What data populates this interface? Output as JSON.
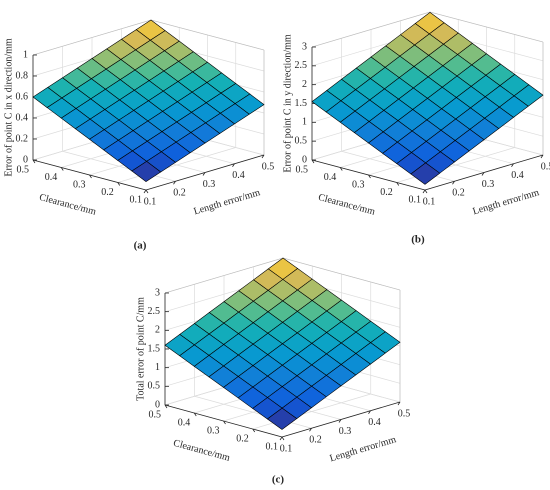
{
  "chart_data": [
    {
      "type": "surface",
      "caption": "(a)",
      "x_label": "Length error/mm",
      "y_label": "Clearance/mm",
      "z_label": "Error of point C in x direction/mm",
      "x": [
        0.1,
        0.15,
        0.2,
        0.25,
        0.3,
        0.35,
        0.4,
        0.45,
        0.5
      ],
      "y": [
        0.1,
        0.15,
        0.2,
        0.25,
        0.3,
        0.35,
        0.4,
        0.45,
        0.5
      ],
      "z": [
        [
          0.08,
          0.13,
          0.18,
          0.23,
          0.28,
          0.33,
          0.38,
          0.43,
          0.48
        ],
        [
          0.145,
          0.195,
          0.245,
          0.295,
          0.345,
          0.395,
          0.445,
          0.495,
          0.545
        ],
        [
          0.21,
          0.26,
          0.31,
          0.36,
          0.41,
          0.46,
          0.51,
          0.56,
          0.61
        ],
        [
          0.275,
          0.325,
          0.375,
          0.425,
          0.475,
          0.525,
          0.575,
          0.625,
          0.675
        ],
        [
          0.34,
          0.39,
          0.44,
          0.49,
          0.54,
          0.59,
          0.64,
          0.69,
          0.74
        ],
        [
          0.405,
          0.455,
          0.505,
          0.555,
          0.605,
          0.655,
          0.705,
          0.755,
          0.805
        ],
        [
          0.47,
          0.52,
          0.57,
          0.62,
          0.67,
          0.72,
          0.77,
          0.82,
          0.87
        ],
        [
          0.535,
          0.585,
          0.635,
          0.685,
          0.735,
          0.785,
          0.835,
          0.885,
          0.935
        ],
        [
          0.6,
          0.65,
          0.7,
          0.75,
          0.8,
          0.85,
          0.9,
          0.95,
          1.0
        ]
      ],
      "xlim": [
        0.1,
        0.5
      ],
      "ylim": [
        0.1,
        0.5
      ],
      "zlim": [
        0,
        1
      ],
      "xticks": [
        0.1,
        0.2,
        0.3,
        0.4,
        0.5
      ],
      "yticks": [
        0.1,
        0.2,
        0.3,
        0.4,
        0.5
      ],
      "zticks": [
        0,
        0.2,
        0.4,
        0.6,
        0.8,
        1
      ],
      "grid": true
    },
    {
      "type": "surface",
      "caption": "(b)",
      "x_label": "Length error/mm",
      "y_label": "Clearance/mm",
      "z_label": "Error of point C in y direction/mm",
      "x": [
        0.1,
        0.15,
        0.2,
        0.25,
        0.3,
        0.35,
        0.4,
        0.45,
        0.5
      ],
      "y": [
        0.1,
        0.15,
        0.2,
        0.25,
        0.3,
        0.35,
        0.4,
        0.45,
        0.5
      ],
      "z": [
        [
          0.15,
          0.33,
          0.51,
          0.69,
          0.87,
          1.05,
          1.23,
          1.41,
          1.59
        ],
        [
          0.325,
          0.505,
          0.685,
          0.865,
          1.045,
          1.225,
          1.405,
          1.585,
          1.765
        ],
        [
          0.5,
          0.68,
          0.86,
          1.04,
          1.22,
          1.4,
          1.58,
          1.76,
          1.94
        ],
        [
          0.675,
          0.855,
          1.035,
          1.215,
          1.395,
          1.575,
          1.755,
          1.935,
          2.115
        ],
        [
          0.85,
          1.03,
          1.21,
          1.39,
          1.57,
          1.75,
          1.93,
          2.11,
          2.29
        ],
        [
          1.025,
          1.205,
          1.385,
          1.565,
          1.745,
          1.925,
          2.105,
          2.285,
          2.465
        ],
        [
          1.2,
          1.38,
          1.56,
          1.74,
          1.92,
          2.1,
          2.28,
          2.46,
          2.64
        ],
        [
          1.375,
          1.555,
          1.735,
          1.915,
          2.095,
          2.275,
          2.455,
          2.635,
          2.815
        ],
        [
          1.55,
          1.73,
          1.91,
          2.09,
          2.27,
          2.45,
          2.63,
          2.81,
          2.99
        ]
      ],
      "xlim": [
        0.1,
        0.5
      ],
      "ylim": [
        0.1,
        0.5
      ],
      "zlim": [
        0,
        3
      ],
      "xticks": [
        0.1,
        0.2,
        0.3,
        0.4,
        0.5
      ],
      "yticks": [
        0.1,
        0.2,
        0.3,
        0.4,
        0.5
      ],
      "zticks": [
        0,
        0.5,
        1,
        1.5,
        2,
        2.5,
        3
      ],
      "grid": true
    },
    {
      "type": "surface",
      "caption": "(c)",
      "x_label": "Length error/mm",
      "y_label": "Clearance/mm",
      "z_label": "Total error of point C/mm",
      "x": [
        0.1,
        0.15,
        0.2,
        0.25,
        0.3,
        0.35,
        0.4,
        0.45,
        0.5
      ],
      "y": [
        0.1,
        0.15,
        0.2,
        0.25,
        0.3,
        0.35,
        0.4,
        0.45,
        0.5
      ],
      "z": [
        [
          0.2,
          0.375,
          0.55,
          0.725,
          0.9,
          1.075,
          1.25,
          1.425,
          1.6
        ],
        [
          0.375,
          0.55,
          0.725,
          0.9,
          1.075,
          1.25,
          1.425,
          1.6,
          1.775
        ],
        [
          0.55,
          0.725,
          0.9,
          1.075,
          1.25,
          1.425,
          1.6,
          1.775,
          1.95
        ],
        [
          0.725,
          0.9,
          1.075,
          1.25,
          1.425,
          1.6,
          1.775,
          1.95,
          2.125
        ],
        [
          0.9,
          1.075,
          1.25,
          1.425,
          1.6,
          1.775,
          1.95,
          2.125,
          2.3
        ],
        [
          1.075,
          1.25,
          1.425,
          1.6,
          1.775,
          1.95,
          2.125,
          2.3,
          2.475
        ],
        [
          1.25,
          1.425,
          1.6,
          1.775,
          1.95,
          2.125,
          2.3,
          2.475,
          2.65
        ],
        [
          1.425,
          1.6,
          1.775,
          1.95,
          2.125,
          2.3,
          2.475,
          2.65,
          2.825
        ],
        [
          1.6,
          1.775,
          1.95,
          2.125,
          2.3,
          2.475,
          2.65,
          2.825,
          3.0
        ]
      ],
      "xlim": [
        0.1,
        0.5
      ],
      "ylim": [
        0.1,
        0.5
      ],
      "zlim": [
        0,
        3
      ],
      "xticks": [
        0.1,
        0.2,
        0.3,
        0.4,
        0.5
      ],
      "yticks": [
        0.1,
        0.2,
        0.3,
        0.4,
        0.5
      ],
      "zticks": [
        0,
        0.5,
        1,
        1.5,
        2,
        2.5,
        3
      ],
      "grid": true
    }
  ]
}
